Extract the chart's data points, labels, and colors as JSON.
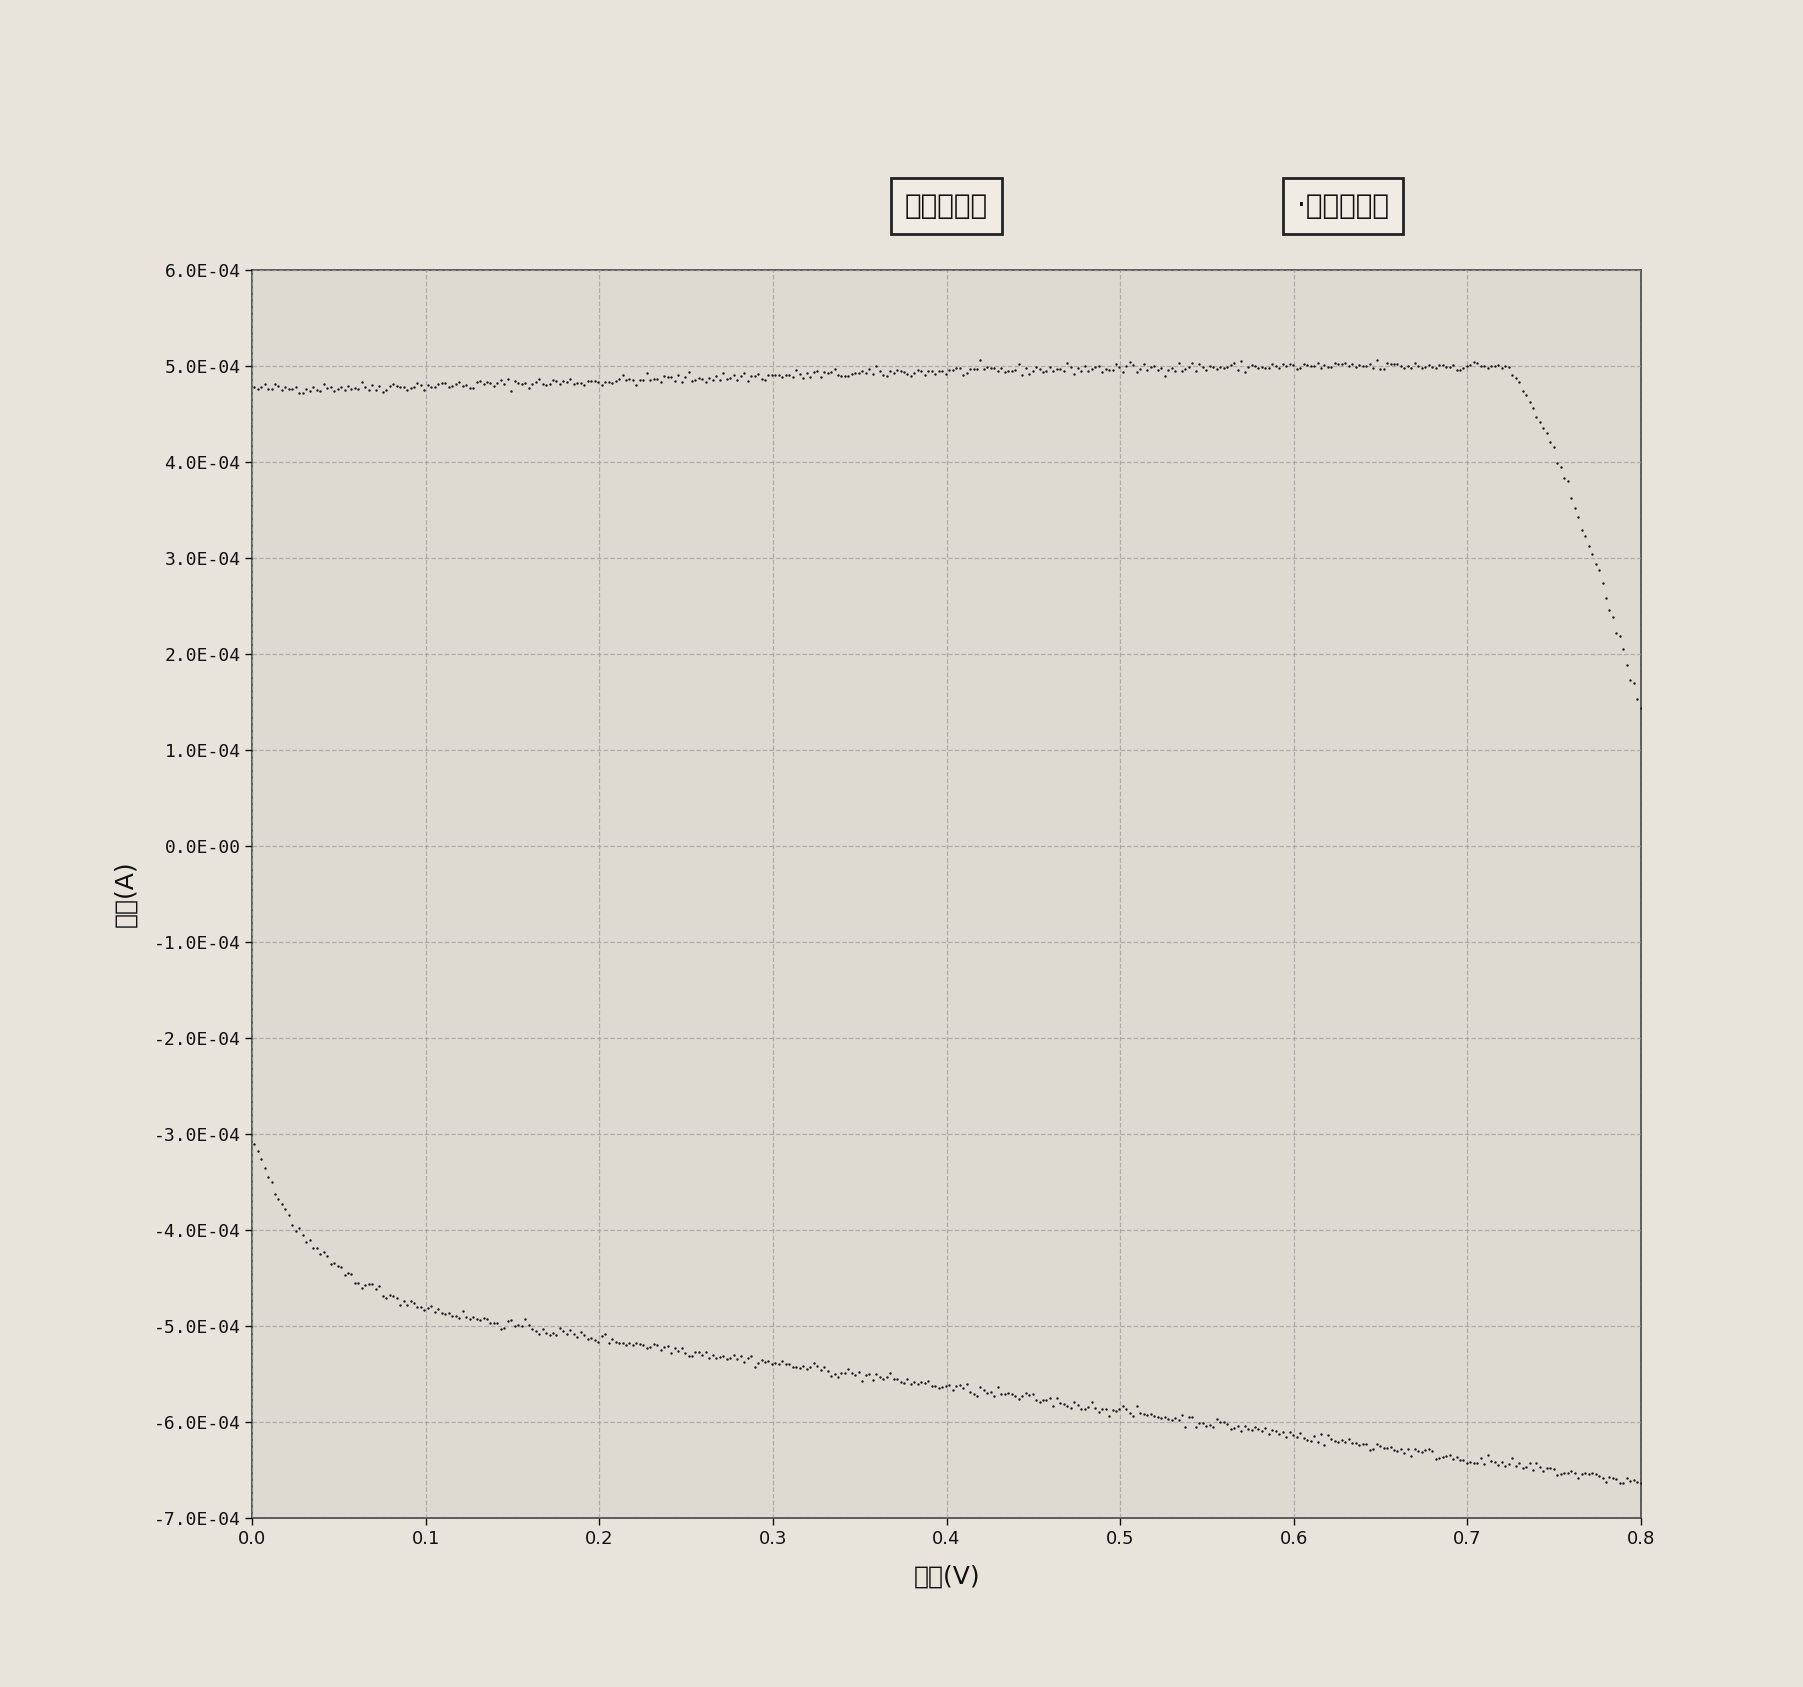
{
  "title_box": "循环伏安图",
  "legend_box": "·第１号循环",
  "xlabel": "电位(V)",
  "ylabel": "电流(A)",
  "xlim": [
    0.0,
    0.8
  ],
  "ylim": [
    -0.0007,
    0.0006
  ],
  "xticks": [
    0.0,
    0.1,
    0.2,
    0.3,
    0.4,
    0.5,
    0.6,
    0.7,
    0.8
  ],
  "yticks": [
    -0.0007,
    -0.0006,
    -0.0005,
    -0.0004,
    -0.0003,
    -0.0002,
    -0.0001,
    0.0,
    0.0001,
    0.0002,
    0.0003,
    0.0004,
    0.0005,
    0.0006
  ],
  "ytick_labels": [
    "-7.0E-04",
    "-6.0E-04",
    "-5.0E-04",
    "-4.0E-04",
    "-3.0E-04",
    "-2.0E-04",
    "-1.0E-04",
    "0.0E-00",
    "1.0E-04",
    "2.0E-04",
    "3.0E-04",
    "4.0E-04",
    "5.0E-04",
    "6.0E-04"
  ],
  "dot_color": "#1a1a1a",
  "fig_bg_color": "#e8e4dc",
  "plot_bg_color": "#dedad2",
  "box_face_color": "#f0ece4",
  "box_edge_color": "#222222",
  "spine_color": "#444444",
  "grid_color": "#999999",
  "tick_label_color": "#111111",
  "axis_label_color": "#111111"
}
